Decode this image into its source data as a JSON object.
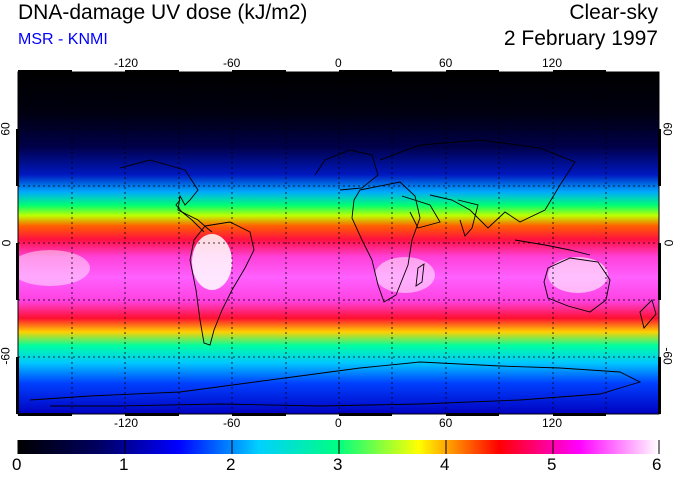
{
  "header": {
    "title": "DNA-damage UV dose (kJ/m2)",
    "credit": "MSR - KNMI",
    "condition": "Clear-sky",
    "date": "2 February 1997"
  },
  "map": {
    "lon_ticks": [
      "-120",
      "-60",
      "0",
      "60",
      "120"
    ],
    "lat_ticks": [
      "60",
      "0",
      "-60"
    ]
  },
  "colorbar": {
    "labels": [
      "0",
      "1",
      "2",
      "3",
      "4",
      "5",
      "6"
    ],
    "colors": [
      "#000000",
      "#000060",
      "#0000ff",
      "#00d0ff",
      "#00ff80",
      "#ffff00",
      "#ff0000",
      "#ff00ff",
      "#ffffff"
    ]
  },
  "colors": {
    "credit": "#0000ff",
    "coastline": "#000000",
    "grid": "#000000"
  }
}
